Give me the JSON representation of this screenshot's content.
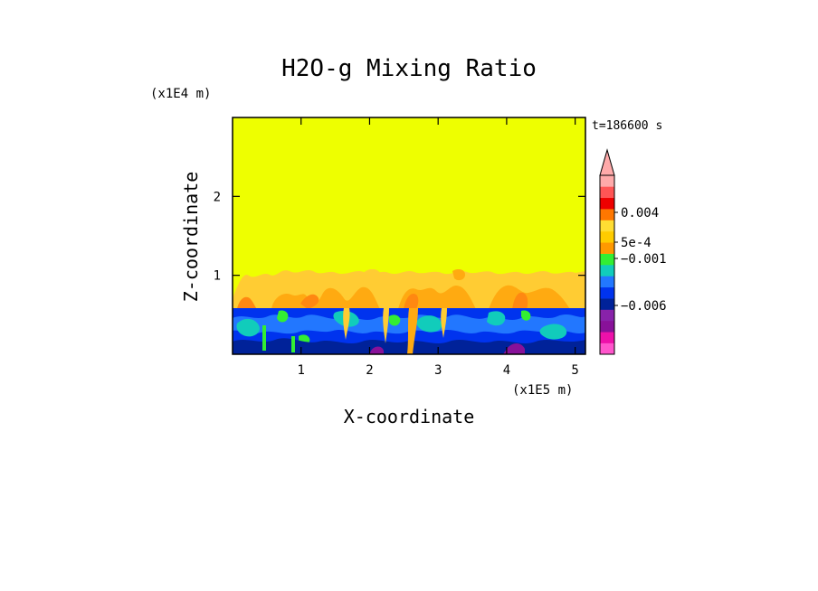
{
  "chart_data": {
    "type": "heatmap",
    "title": "H2O-g Mixing Ratio",
    "xlabel": "X-coordinate",
    "ylabel": "Z-coordinate",
    "x_unit": "(x1E5 m)",
    "y_unit": "(x1E4 m)",
    "time_label": "t=186600 s",
    "xlim": [
      0,
      5.15
    ],
    "ylim": [
      0,
      3.0
    ],
    "x_ticks": [
      {
        "value": 1,
        "label": "1"
      },
      {
        "value": 2,
        "label": "2"
      },
      {
        "value": 3,
        "label": "3"
      },
      {
        "value": 4,
        "label": "4"
      },
      {
        "value": 5,
        "label": "5"
      }
    ],
    "y_ticks": [
      {
        "value": 1,
        "label": "1"
      },
      {
        "value": 2,
        "label": "2"
      }
    ],
    "regions": [
      {
        "z_min": 1.05,
        "z_max": 3.0,
        "level": "background yellow"
      },
      {
        "z_min": 0.6,
        "z_max": 1.05,
        "level": "orange mixed plumes"
      },
      {
        "z_min": 0.0,
        "z_max": 0.6,
        "level": "blue / cyan / green turbulent layer"
      }
    ],
    "colorbar": {
      "colors": [
        "#ff55cc",
        "#ee11aa",
        "#881199",
        "#8822aa",
        "#002299",
        "#0033ee",
        "#2277ff",
        "#11ccbb",
        "#33ee33",
        "#ff9900",
        "#ffcc00",
        "#ffdd33",
        "#ff7700",
        "#ee0000",
        "#ff5555",
        "#ffaaaa"
      ],
      "labels": [
        {
          "value": 0.004,
          "text": "0.004"
        },
        {
          "value": 0.0005,
          "text": "5e-4"
        },
        {
          "value": -0.001,
          "text": "−0.001"
        },
        {
          "value": -0.006,
          "text": "−0.006"
        }
      ]
    }
  }
}
